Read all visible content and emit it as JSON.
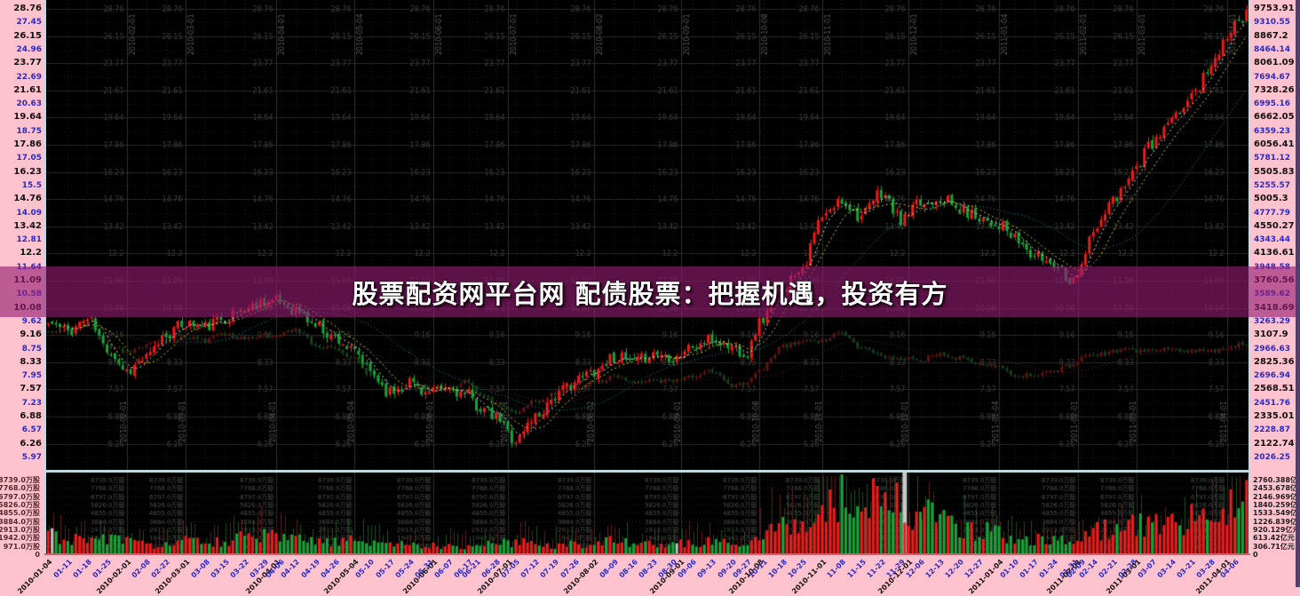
{
  "banner": {
    "title": "股票配资网平台网 配债股票：把握机遇，投资有方"
  },
  "colors": {
    "gutter_pink": "#ffc2ce",
    "plot_background": "#000000",
    "pane_border_cyan": "#b5dfe8",
    "banner_purple": "rgba(148,28,114,0.62)",
    "up_candle_red": "#f01a1a",
    "down_candle_green": "#17a33a",
    "dim_index_up": "#611313",
    "dim_index_down": "#173f1f",
    "ma5_white": "#d8d8d8",
    "ma10_yellow": "#cccc00",
    "ma30_cyan": "#00a0a0",
    "index_ma_darkred": "#6e2626",
    "major_tick_black": "#111111",
    "minor_tick_blue": "#2a2ac8",
    "highlight_gray": "#c9c9c9",
    "right_edge_purple": "#4c4076"
  },
  "chart_data": {
    "type": "candlestick",
    "title": "股票配资网平台网 配债股票：把握机遇，投资有方",
    "scale": "log",
    "bars_total": 306,
    "legend_position": "none",
    "grid": true,
    "price_axis": {
      "side": "left",
      "min": 5.97,
      "max": 28.76,
      "ticks": [
        "28.76",
        "27.45",
        "26.15",
        "24.96",
        "23.77",
        "22.69",
        "21.61",
        "20.63",
        "19.64",
        "18.75",
        "17.86",
        "17.05",
        "16.23",
        "15.5",
        "14.76",
        "14.09",
        "13.42",
        "12.81",
        "12.2",
        "11.64",
        "11.09",
        "10.58",
        "10.08",
        "9.62",
        "9.16",
        "8.75",
        "8.33",
        "7.95",
        "7.57",
        "7.23",
        "6.88",
        "6.57",
        "6.26",
        "5.97"
      ]
    },
    "index_axis": {
      "side": "right",
      "min": 2026.25,
      "max": 9753.91,
      "ticks": [
        "9753.91",
        "9310.55",
        "8867.2",
        "8464.14",
        "8061.09",
        "7694.67",
        "7328.26",
        "6995.16",
        "6662.05",
        "6359.23",
        "6056.41",
        "5781.12",
        "5505.83",
        "5255.57",
        "5005.3",
        "4777.79",
        "4550.27",
        "4343.44",
        "4136.61",
        "3948.58",
        "3760.56",
        "3589.62",
        "3418.69",
        "3263.29",
        "3107.9",
        "2966.63",
        "2825.36",
        "2696.94",
        "2568.51",
        "2451.76",
        "2335.01",
        "2228.87",
        "2122.74",
        "2026.25"
      ]
    },
    "volume_axis": {
      "max_wan": 8739.0,
      "max_yi": 2760.388,
      "ticks_left": [
        "8739.0万股",
        "7768.0万股",
        "6797.0万股",
        "5826.0万股",
        "4855.0万股",
        "3884.0万股",
        "2913.0万股",
        "1942.0万股",
        "971.0万股",
        "0"
      ],
      "ticks_right": [
        "2760.388亿元",
        "2453.678亿元",
        "2146.969亿元",
        "1840.259亿元",
        "1533.549亿元",
        "1226.839亿元",
        "920.129亿元",
        "613.42亿元",
        "306.71亿元",
        "0"
      ]
    },
    "anchor_pos": [
      0,
      5,
      10,
      15,
      20,
      25,
      30,
      35,
      40,
      45,
      50,
      55,
      59,
      63,
      68,
      73,
      78,
      82,
      87,
      92,
      97,
      102,
      107,
      109,
      114,
      119,
      124,
      129,
      134,
      139,
      144,
      149,
      154,
      159,
      164,
      169,
      174,
      178,
      181,
      187,
      192,
      197,
      202,
      207,
      212,
      217,
      222,
      227,
      232,
      237,
      242,
      246,
      251,
      256,
      261,
      263,
      266,
      271,
      276,
      281,
      286,
      291,
      296,
      300,
      302
    ],
    "series": [
      {
        "name": "stock-price-weekly-close",
        "style": "bright-candles",
        "axis": "left",
        "values": [
          9.55,
          9.3,
          9.7,
          8.75,
          8.1,
          8.45,
          9.2,
          9.55,
          9.45,
          9.75,
          10.05,
          10.35,
          10.3,
          10.0,
          9.5,
          9.1,
          8.6,
          8.05,
          7.5,
          7.8,
          7.45,
          7.6,
          7.4,
          7.15,
          6.85,
          6.35,
          6.9,
          7.4,
          7.8,
          8.1,
          8.5,
          8.3,
          8.6,
          8.5,
          8.8,
          9.0,
          8.8,
          8.6,
          9.6,
          10.9,
          11.7,
          13.8,
          14.7,
          13.9,
          15.1,
          13.7,
          14.5,
          14.9,
          14.2,
          13.9,
          13.5,
          12.8,
          12.1,
          11.8,
          11.1,
          11.9,
          13.1,
          14.6,
          16.3,
          17.9,
          19.4,
          21.2,
          23.6,
          25.6,
          28.1
        ]
      },
      {
        "name": "index-weekly-close",
        "style": "dim-candles",
        "axis": "right",
        "values": [
          3150,
          3170,
          3220,
          2990,
          2940,
          3000,
          3060,
          3080,
          3050,
          3130,
          3070,
          3110,
          3130,
          3160,
          3010,
          2960,
          2860,
          2700,
          2560,
          2640,
          2570,
          2580,
          2650,
          2540,
          2450,
          2360,
          2470,
          2540,
          2580,
          2650,
          2680,
          2640,
          2660,
          2640,
          2690,
          2740,
          2600,
          2630,
          2740,
          2990,
          3040,
          3050,
          3130,
          2970,
          2890,
          2870,
          2850,
          2900,
          2870,
          2830,
          2790,
          2710,
          2690,
          2750,
          2800,
          2880,
          2900,
          2930,
          2950,
          2940,
          2970,
          2950,
          2940,
          2980,
          3000
        ]
      },
      {
        "name": "volume-wan-gu",
        "style": "bars",
        "unit": "万股",
        "values": [
          2400,
          1800,
          1600,
          2000,
          1500,
          1100,
          1200,
          1500,
          1400,
          1600,
          1900,
          2100,
          1900,
          1700,
          1500,
          1400,
          1600,
          1500,
          1300,
          1100,
          1000,
          1100,
          900,
          1000,
          1200,
          1500,
          1300,
          1100,
          1200,
          1400,
          1500,
          1200,
          1300,
          1100,
          1400,
          1600,
          1300,
          1200,
          2600,
          3600,
          3200,
          5200,
          6800,
          4600,
          7800,
          5600,
          4800,
          4200,
          3400,
          2800,
          2400,
          2000,
          1800,
          1600,
          1500,
          2200,
          2600,
          3000,
          3400,
          3800,
          3600,
          4200,
          4600,
          5200,
          6200
        ]
      },
      {
        "name": "turnover-yi-yuan",
        "style": "thin-bars",
        "unit": "亿元",
        "values": [
          1200,
          1000,
          900,
          1100,
          800,
          600,
          700,
          900,
          850,
          950,
          1100,
          1200,
          1150,
          1000,
          900,
          850,
          1000,
          950,
          800,
          700,
          650,
          700,
          600,
          650,
          750,
          900,
          800,
          700,
          750,
          850,
          900,
          750,
          800,
          700,
          850,
          950,
          800,
          750,
          1400,
          1900,
          1700,
          2300,
          2700,
          2100,
          2600,
          2200,
          2000,
          1800,
          1500,
          1300,
          1100,
          950,
          850,
          800,
          750,
          1000,
          1150,
          1300,
          1450,
          1600,
          1550,
          1750,
          1900,
          2100,
          2400
        ]
      }
    ],
    "moving_averages": [
      {
        "name": "MA5",
        "color": "#d8d8d8",
        "dash": "dashed"
      },
      {
        "name": "MA10",
        "color": "#cccc00",
        "dash": "dashed"
      },
      {
        "name": "MA30",
        "color": "#00a0a0",
        "dash": "dotted"
      },
      {
        "name": "index-MA20",
        "color": "#6e2626",
        "dash": "dotted"
      }
    ],
    "month_lines": [
      {
        "pos": 20,
        "label": "2010-02-01"
      },
      {
        "pos": 35,
        "label": "2010-03-01"
      },
      {
        "pos": 58,
        "label": "2010-04-01"
      },
      {
        "pos": 78,
        "label": "2010-05-04"
      },
      {
        "pos": 98,
        "label": "2010-06-01"
      },
      {
        "pos": 117,
        "label": "2010-07-01"
      },
      {
        "pos": 139,
        "label": "2010-08-02"
      },
      {
        "pos": 161,
        "label": "2010-09-01"
      },
      {
        "pos": 181,
        "label": "2010-10-08"
      },
      {
        "pos": 197,
        "label": "2010-11-01"
      },
      {
        "pos": 219,
        "label": "2010-12-01"
      },
      {
        "pos": 242,
        "label": "2011-01-04"
      },
      {
        "pos": 262,
        "label": "2011-02-01"
      },
      {
        "pos": 277,
        "label": "2011-03-01"
      },
      {
        "pos": 300,
        "label": "2011-04-01"
      }
    ],
    "date_ticks": [
      {
        "label": "2010-01-04",
        "pos": 0,
        "major": true
      },
      {
        "label": "01-11",
        "pos": 5
      },
      {
        "label": "01-18",
        "pos": 10
      },
      {
        "label": "01-25",
        "pos": 15
      },
      {
        "label": "2010-02-01",
        "pos": 20,
        "major": true
      },
      {
        "label": "02-08",
        "pos": 25
      },
      {
        "label": "02-22",
        "pos": 30
      },
      {
        "label": "2010-03-01",
        "pos": 35,
        "major": true
      },
      {
        "label": "03-08",
        "pos": 40
      },
      {
        "label": "03-15",
        "pos": 45
      },
      {
        "label": "03-22",
        "pos": 50
      },
      {
        "label": "03-29",
        "pos": 55
      },
      {
        "label": "2010-04-01",
        "pos": 58,
        "major": true
      },
      {
        "label": "04-06",
        "pos": 59
      },
      {
        "label": "04-12",
        "pos": 63
      },
      {
        "label": "04-19",
        "pos": 68
      },
      {
        "label": "04-26",
        "pos": 73
      },
      {
        "label": "2010-05-04",
        "pos": 78,
        "major": true
      },
      {
        "label": "05-10",
        "pos": 82
      },
      {
        "label": "05-17",
        "pos": 87
      },
      {
        "label": "05-24",
        "pos": 92
      },
      {
        "label": "05-31",
        "pos": 97
      },
      {
        "label": "2010-06-01",
        "pos": 98,
        "major": true
      },
      {
        "label": "06-07",
        "pos": 102
      },
      {
        "label": "06-17",
        "pos": 107
      },
      {
        "label": "06-21",
        "pos": 109
      },
      {
        "label": "06-28",
        "pos": 114
      },
      {
        "label": "2010-07-01",
        "pos": 117,
        "major": true
      },
      {
        "label": "07-05",
        "pos": 119
      },
      {
        "label": "07-12",
        "pos": 124
      },
      {
        "label": "07-19",
        "pos": 129
      },
      {
        "label": "07-26",
        "pos": 134
      },
      {
        "label": "2010-08-02",
        "pos": 139,
        "major": true
      },
      {
        "label": "08-09",
        "pos": 144
      },
      {
        "label": "08-16",
        "pos": 149
      },
      {
        "label": "08-23",
        "pos": 154
      },
      {
        "label": "08-30",
        "pos": 159
      },
      {
        "label": "2010-09-01",
        "pos": 161,
        "major": true
      },
      {
        "label": "09-06",
        "pos": 164
      },
      {
        "label": "09-13",
        "pos": 169
      },
      {
        "label": "09-20",
        "pos": 174
      },
      {
        "label": "09-27",
        "pos": 178
      },
      {
        "label": "2010-10-08",
        "pos": 181,
        "major": true
      },
      {
        "label": "10-11",
        "pos": 182
      },
      {
        "label": "10-18",
        "pos": 187
      },
      {
        "label": "10-25",
        "pos": 192
      },
      {
        "label": "2010-11-01",
        "pos": 197,
        "major": true
      },
      {
        "label": "11-08",
        "pos": 202
      },
      {
        "label": "11-15",
        "pos": 207
      },
      {
        "label": "11-22",
        "pos": 212
      },
      {
        "label": "11-29",
        "pos": 217
      },
      {
        "label": "2010-12-01",
        "pos": 219,
        "major": true
      },
      {
        "label": "12-06",
        "pos": 222
      },
      {
        "label": "12-13",
        "pos": 227
      },
      {
        "label": "12-20",
        "pos": 232
      },
      {
        "label": "12-27",
        "pos": 237
      },
      {
        "label": "2011-01-04",
        "pos": 242,
        "major": true
      },
      {
        "label": "01-10",
        "pos": 246
      },
      {
        "label": "01-17",
        "pos": 251
      },
      {
        "label": "01-24",
        "pos": 256
      },
      {
        "label": "01-31",
        "pos": 261
      },
      {
        "label": "2011-02-01",
        "pos": 262,
        "major": true
      },
      {
        "label": "02-09",
        "pos": 263
      },
      {
        "label": "02-14",
        "pos": 266
      },
      {
        "label": "02-21",
        "pos": 271
      },
      {
        "label": "02-28",
        "pos": 276
      },
      {
        "label": "2011-03-01",
        "pos": 277,
        "major": true
      },
      {
        "label": "03-07",
        "pos": 281
      },
      {
        "label": "03-14",
        "pos": 286
      },
      {
        "label": "03-21",
        "pos": 291
      },
      {
        "label": "03-28",
        "pos": 296
      },
      {
        "label": "2011-04-01",
        "pos": 300,
        "major": true
      },
      {
        "label": "04-06",
        "pos": 302
      }
    ],
    "volume_highlight_columns": [
      218
    ],
    "gray_volume_bars": [
      1,
      160
    ]
  }
}
